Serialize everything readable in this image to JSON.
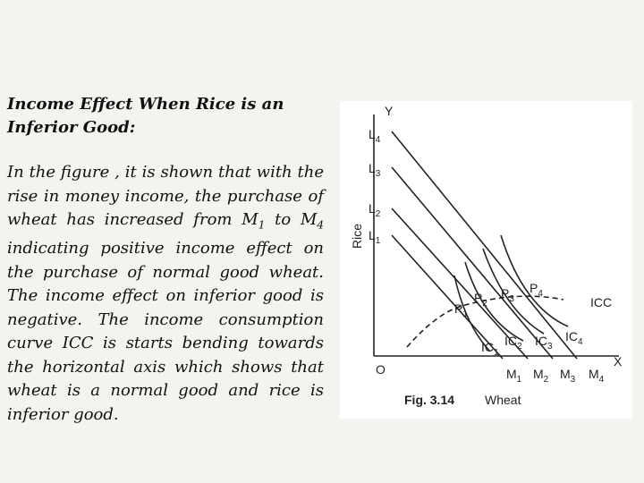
{
  "slide": {
    "title": "Income Effect When Rice is an Inferior Good:",
    "paragraph": [
      {
        "text": "In the figure , it is shown that with the rise in money income, the purchase of wheat has increased from "
      },
      {
        "text": "M",
        "sub": "1"
      },
      {
        "text": " to "
      },
      {
        "text": "M",
        "sub": "4"
      },
      {
        "text": " indicating positive income effect on the purchase of normal good wheat. The income effect on inferior good is negative. The income consumption curve ICC is starts bending towards the horizontal axis which shows that wheat is a normal good and rice is inferior good."
      }
    ],
    "figure": {
      "y_axis": "Y",
      "x_axis": "X",
      "origin": "O",
      "y_label": "Rice",
      "caption": "Fig. 3.14",
      "x_label": "Wheat",
      "icc": "ICC",
      "budget_top": [
        {
          "text": "L",
          "sub": "4"
        },
        {
          "text": "L",
          "sub": "3"
        },
        {
          "text": "L",
          "sub": "2"
        },
        {
          "text": "L",
          "sub": "1"
        }
      ],
      "budget_bottom": [
        {
          "text": "M",
          "sub": "1"
        },
        {
          "text": "M",
          "sub": "2"
        },
        {
          "text": "M",
          "sub": "3"
        },
        {
          "text": "M",
          "sub": "4"
        }
      ],
      "points": [
        {
          "text": "P",
          "sub": "1"
        },
        {
          "text": "P",
          "sub": "2"
        },
        {
          "text": "P",
          "sub": "3"
        },
        {
          "text": "P",
          "sub": "4"
        }
      ],
      "curves": [
        {
          "text": "IC",
          "sub": "1"
        },
        {
          "text": "IC",
          "sub": "2"
        },
        {
          "text": "IC",
          "sub": "3"
        },
        {
          "text": "IC",
          "sub": "4"
        }
      ]
    }
  }
}
